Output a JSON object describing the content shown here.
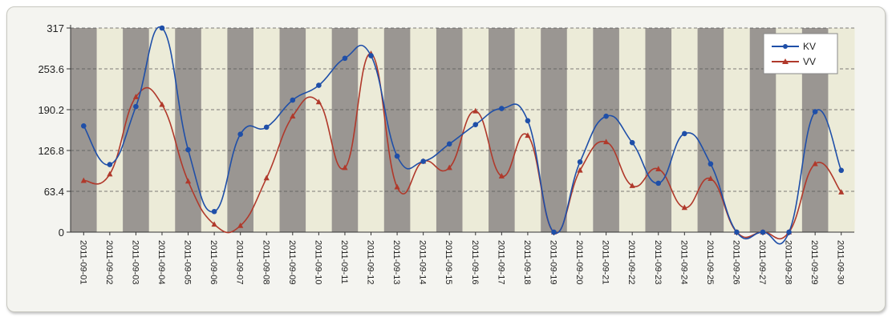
{
  "chart_data": {
    "type": "line",
    "title": "",
    "xlabel": "",
    "ylabel": "",
    "ylim": [
      0,
      317
    ],
    "yticks": [
      "0",
      "63.4",
      "126.8",
      "190.2",
      "253.6",
      "317"
    ],
    "grid": "horizontal dashed",
    "background": "alternating vertical stripes (dark gray / light)",
    "legend": "top-right",
    "categories": [
      "2011-09-01",
      "2011-09-02",
      "2011-09-03",
      "2011-09-04",
      "2011-09-05",
      "2011-09-06",
      "2011-09-07",
      "2011-09-08",
      "2011-09-09",
      "2011-09-10",
      "2011-09-11",
      "2011-09-12",
      "2011-09-13",
      "2011-09-14",
      "2011-09-15",
      "2011-09-16",
      "2011-09-17",
      "2011-09-18",
      "2011-09-19",
      "2011-09-20",
      "2011-09-21",
      "2011-09-22",
      "2011-09-23",
      "2011-09-24",
      "2011-09-25",
      "2011-09-26",
      "2011-09-27",
      "2011-09-28",
      "2011-09-29",
      "2011-09-30"
    ],
    "series": [
      {
        "name": "KV",
        "color": "#1f4fa8",
        "marker": "circle",
        "values": [
          165,
          105,
          195,
          317,
          128,
          32,
          152,
          163,
          205,
          228,
          270,
          274,
          118,
          110,
          137,
          167,
          192,
          173,
          0,
          109,
          180,
          139,
          76,
          153,
          106,
          0,
          0,
          0,
          187,
          96
        ]
      },
      {
        "name": "VV",
        "color": "#b0392b",
        "marker": "triangle",
        "values": [
          80,
          90,
          210,
          198,
          79,
          12,
          10,
          84,
          180,
          202,
          100,
          277,
          70,
          110,
          100,
          188,
          87,
          150,
          0,
          96,
          140,
          72,
          98,
          38,
          83,
          0,
          0,
          0,
          106,
          62
        ]
      }
    ]
  }
}
